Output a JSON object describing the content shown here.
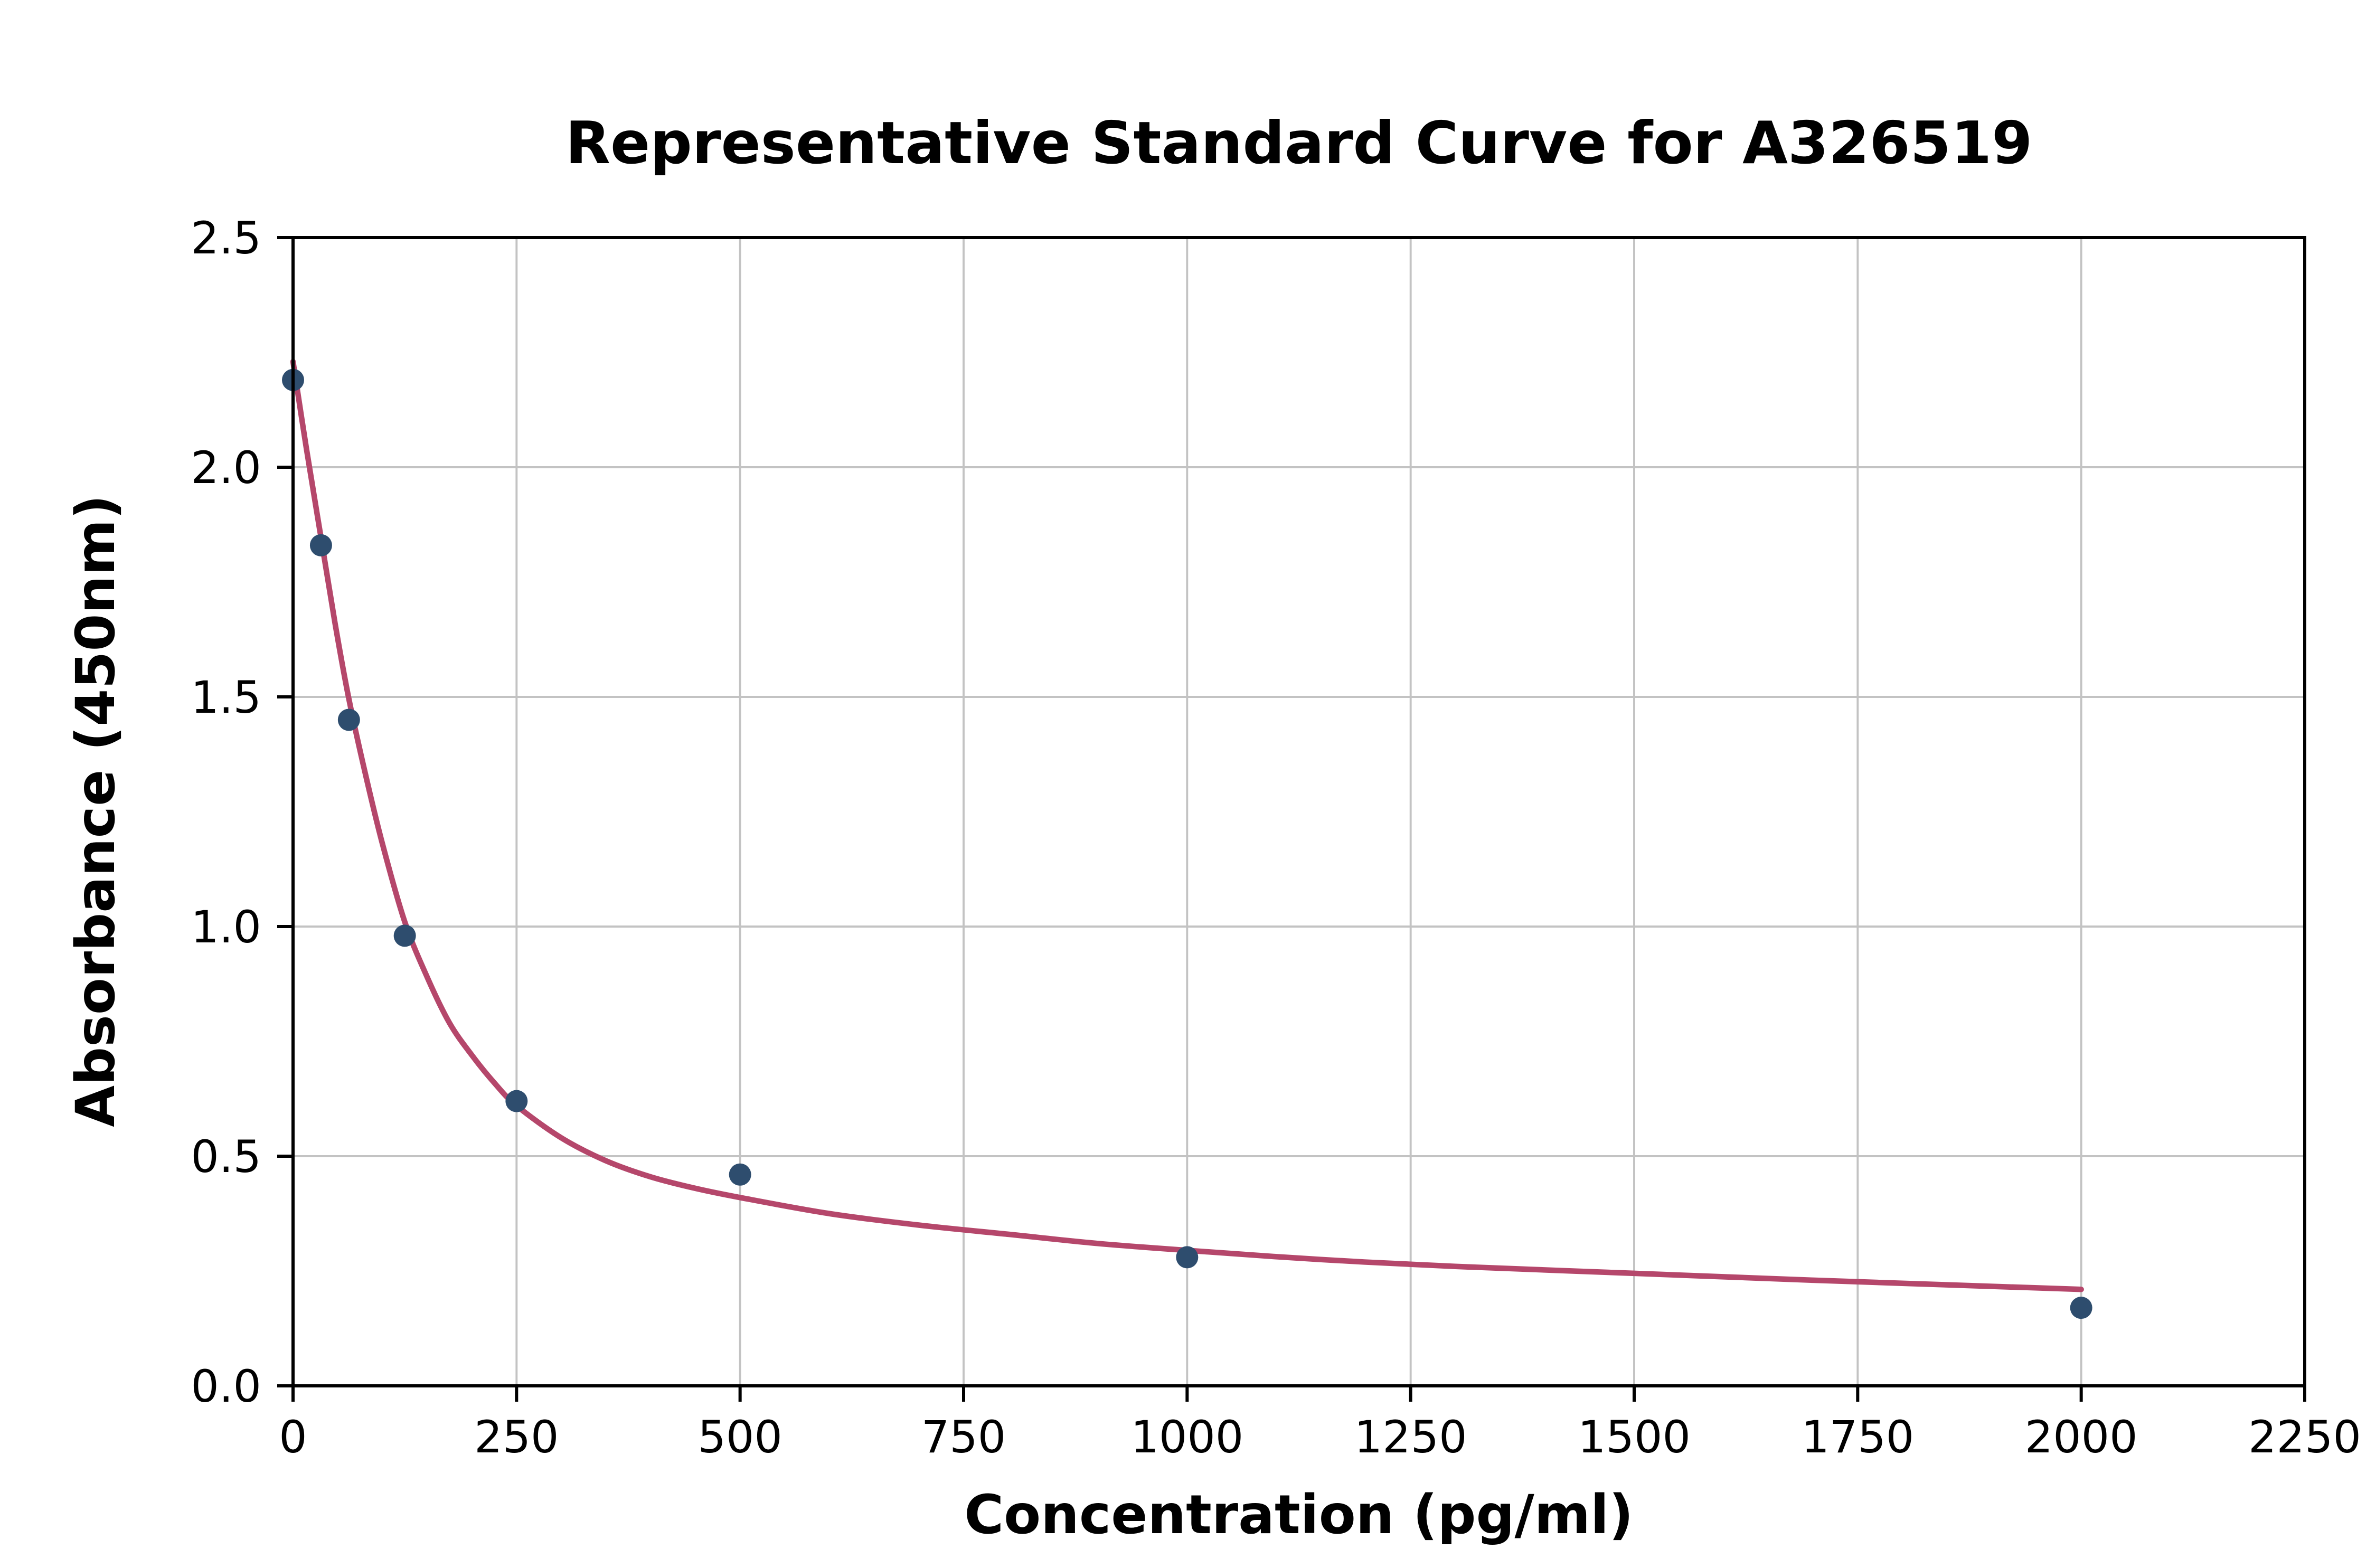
{
  "chart_data": {
    "type": "scatter",
    "title": "Representative Standard Curve for A326519",
    "xlabel": "Concentration (pg/ml)",
    "ylabel": "Absorbance (450nm)",
    "xlim": [
      0,
      2250
    ],
    "ylim": [
      0,
      2.5
    ],
    "xticks": [
      0,
      250,
      500,
      750,
      1000,
      1250,
      1500,
      1750,
      2000,
      2250
    ],
    "xtick_labels": [
      "0",
      "250",
      "500",
      "750",
      "1000",
      "1250",
      "1500",
      "1750",
      "2000",
      "2250"
    ],
    "yticks": [
      0,
      0.5,
      1.0,
      1.5,
      2.0,
      2.5
    ],
    "ytick_labels": [
      "0.0",
      "0.5",
      "1.0",
      "1.5",
      "2.0",
      "2.5"
    ],
    "grid": true,
    "legend": "none",
    "points": [
      {
        "x": 0,
        "y": 2.19
      },
      {
        "x": 31.25,
        "y": 1.83
      },
      {
        "x": 62.5,
        "y": 1.45
      },
      {
        "x": 125,
        "y": 0.98
      },
      {
        "x": 250,
        "y": 0.62
      },
      {
        "x": 500,
        "y": 0.46
      },
      {
        "x": 1000,
        "y": 0.28
      },
      {
        "x": 2000,
        "y": 0.17
      }
    ],
    "fit_curve": [
      [
        0,
        2.23
      ],
      [
        15,
        2.04
      ],
      [
        31,
        1.85
      ],
      [
        47,
        1.66
      ],
      [
        62,
        1.5
      ],
      [
        80,
        1.34
      ],
      [
        100,
        1.18
      ],
      [
        125,
        1.01
      ],
      [
        150,
        0.89
      ],
      [
        175,
        0.79
      ],
      [
        200,
        0.72
      ],
      [
        225,
        0.66
      ],
      [
        250,
        0.61
      ],
      [
        300,
        0.54
      ],
      [
        350,
        0.49
      ],
      [
        400,
        0.455
      ],
      [
        450,
        0.43
      ],
      [
        500,
        0.41
      ],
      [
        600,
        0.375
      ],
      [
        700,
        0.35
      ],
      [
        800,
        0.33
      ],
      [
        900,
        0.31
      ],
      [
        1000,
        0.295
      ],
      [
        1150,
        0.275
      ],
      [
        1300,
        0.26
      ],
      [
        1500,
        0.245
      ],
      [
        1700,
        0.23
      ],
      [
        1850,
        0.22
      ],
      [
        2000,
        0.21
      ]
    ],
    "colors": {
      "points": "#2e4d6e",
      "curve": "#b5476b",
      "grid": "#c3c3c3",
      "axis": "#000000",
      "text": "#000000",
      "background": "#ffffff"
    }
  }
}
